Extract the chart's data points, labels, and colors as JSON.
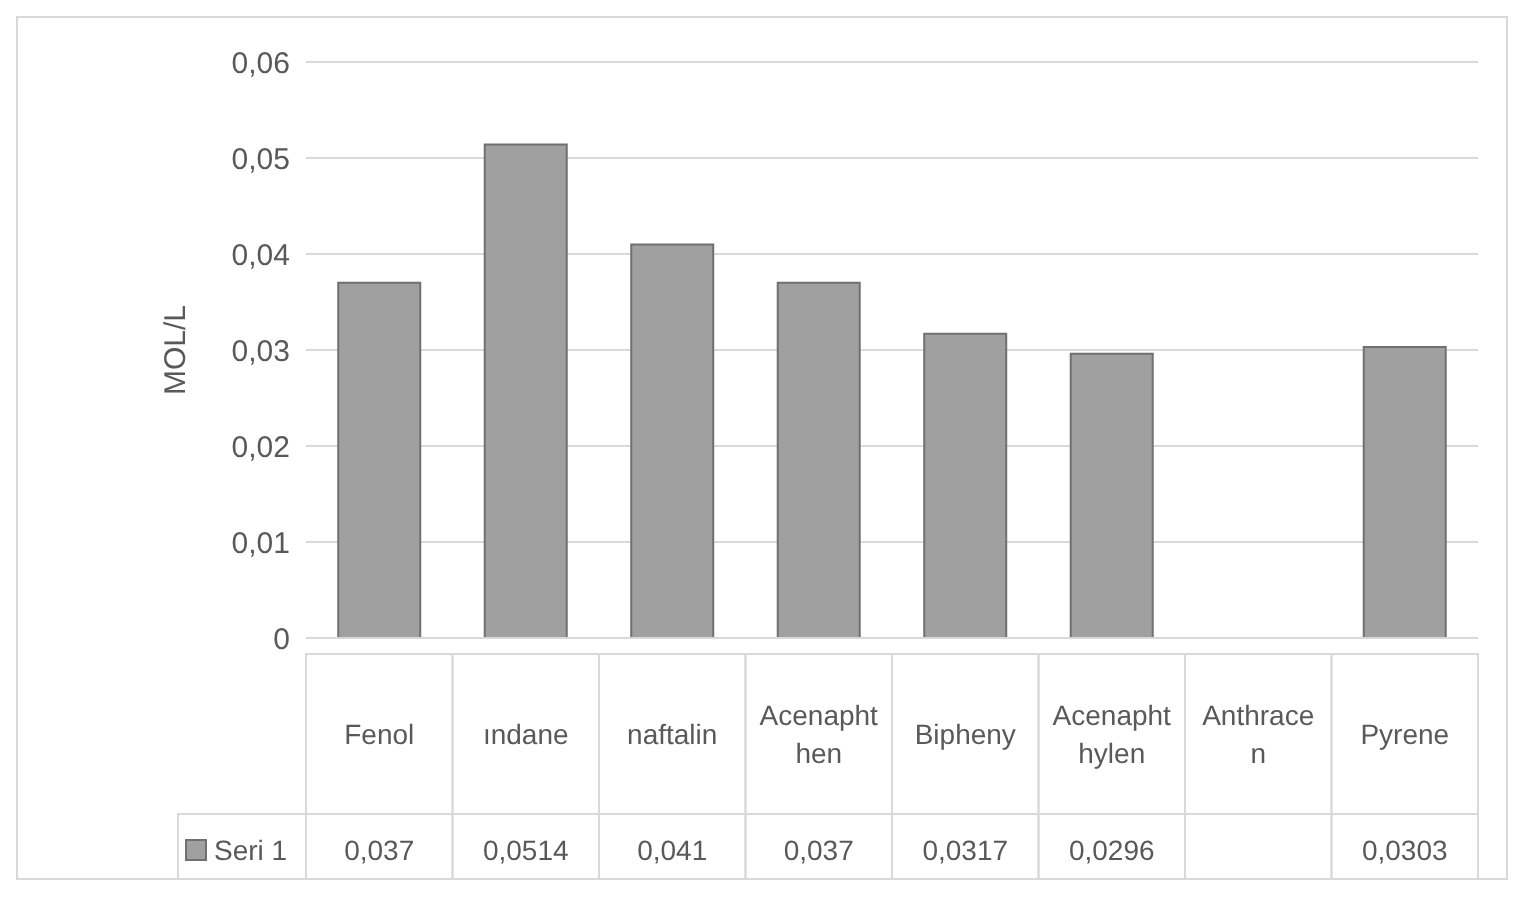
{
  "chart_data": {
    "type": "bar",
    "ylabel": "MOL/L",
    "categories": [
      "Fenol",
      "ındane",
      "naftalin",
      "Acenaphthen",
      "Bipheny",
      "Acenaphthylen",
      "Anthracen",
      "Pyrene"
    ],
    "series": [
      {
        "name": "Seri 1",
        "color": "#a0a0a0",
        "values": [
          0.037,
          0.0514,
          0.041,
          0.037,
          0.0317,
          0.0296,
          null,
          0.0303
        ],
        "value_labels": [
          "0,037",
          "0,0514",
          "0,041",
          "0,037",
          "0,0317",
          "0,0296",
          null,
          "0,0303"
        ]
      }
    ],
    "ylim": [
      0,
      0.06
    ],
    "yticks": [
      0,
      {
        "value": 0.01,
        "label": "0,01"
      },
      {
        "value": 0.02,
        "label": "0,02"
      },
      {
        "value": 0.03,
        "label": "0,03"
      },
      {
        "value": 0.04,
        "label": "0,04"
      },
      {
        "value": 0.05,
        "label": "0,05"
      },
      {
        "value": 0.06,
        "label": "0,06"
      }
    ],
    "grid": "y",
    "legend": "bottom"
  }
}
